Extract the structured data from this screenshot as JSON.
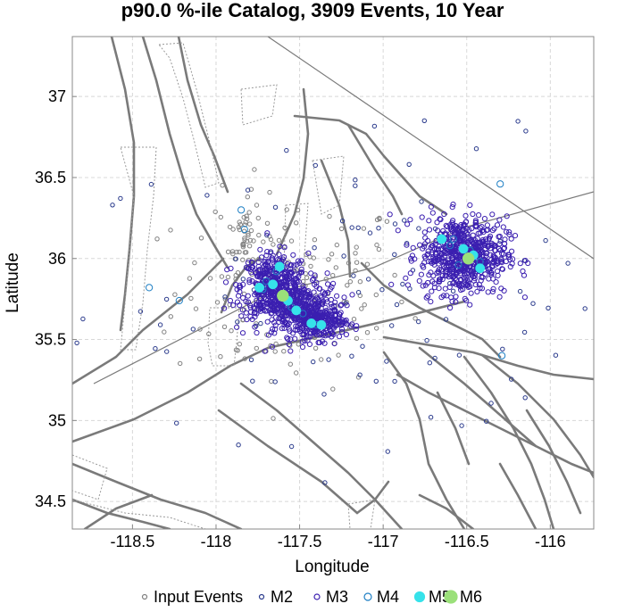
{
  "chart_data": {
    "type": "scatter",
    "title": "p90.0 %-ile Catalog, 3909 Events, 10 Year",
    "xlabel": "Longitude",
    "ylabel": "Latitude",
    "xlim": [
      -118.86,
      -115.74
    ],
    "ylim": [
      34.33,
      37.37
    ],
    "xticks": [
      -118.5,
      -118,
      -117.5,
      -117,
      -116.5,
      -116
    ],
    "yticks": [
      34.5,
      35,
      35.5,
      36,
      36.5,
      37
    ],
    "grid": true,
    "legend_position": "bottom",
    "legend": [
      {
        "label": "Input Events",
        "color": "#808080",
        "symbol": "open-circle"
      },
      {
        "label": "M2",
        "color": "#2a3a8c",
        "symbol": "open-circle"
      },
      {
        "label": "M3",
        "color": "#3b1fb0",
        "symbol": "open-circle"
      },
      {
        "label": "M4",
        "color": "#1e7fc4",
        "symbol": "open-circle"
      },
      {
        "label": "M5",
        "color": "#36e2ea",
        "symbol": "filled-circle"
      },
      {
        "label": "M6",
        "color": "#9be07a",
        "symbol": "filled-circle"
      }
    ],
    "clusters": [
      {
        "series": "M3",
        "center": [
          -117.65,
          35.83
        ],
        "spread": [
          0.1,
          0.1
        ],
        "count": 420
      },
      {
        "series": "M3",
        "center": [
          -117.5,
          35.68
        ],
        "spread": [
          0.12,
          0.08
        ],
        "count": 360
      },
      {
        "series": "M3",
        "center": [
          -117.38,
          35.6
        ],
        "spread": [
          0.08,
          0.05
        ],
        "count": 200
      },
      {
        "series": "M3",
        "center": [
          -116.52,
          36.02
        ],
        "spread": [
          0.13,
          0.12
        ],
        "count": 650
      },
      {
        "series": "Input Events",
        "center": [
          -117.55,
          35.8
        ],
        "spread": [
          0.35,
          0.3
        ],
        "count": 160
      },
      {
        "series": "Input Events",
        "center": [
          -117.83,
          36.15
        ],
        "spread": [
          0.05,
          0.12
        ],
        "count": 40
      },
      {
        "series": "M2",
        "center": [
          -117.0,
          35.8
        ],
        "spread": [
          0.9,
          0.45
        ],
        "count": 120
      }
    ],
    "points": {
      "M4": [
        [
          -117.64,
          35.92
        ],
        [
          -117.7,
          35.86
        ],
        [
          -117.72,
          35.81
        ],
        [
          -117.55,
          35.7
        ],
        [
          -117.48,
          35.66
        ],
        [
          -117.4,
          35.59
        ],
        [
          -116.6,
          36.08
        ],
        [
          -116.48,
          36.05
        ],
        [
          -116.42,
          35.98
        ],
        [
          -116.58,
          36.12
        ],
        [
          -117.85,
          36.3
        ],
        [
          -118.22,
          35.74
        ],
        [
          -118.4,
          35.82
        ],
        [
          -116.3,
          36.46
        ],
        [
          -116.29,
          35.4
        ],
        [
          -116.55,
          35.96
        ],
        [
          -117.83,
          36.18
        ]
      ],
      "M5": [
        [
          -117.62,
          35.95
        ],
        [
          -117.66,
          35.84
        ],
        [
          -117.74,
          35.82
        ],
        [
          -117.57,
          35.74
        ],
        [
          -117.52,
          35.68
        ],
        [
          -117.43,
          35.6
        ],
        [
          -117.37,
          35.59
        ],
        [
          -116.65,
          36.12
        ],
        [
          -116.52,
          36.06
        ],
        [
          -116.42,
          35.94
        ],
        [
          -116.46,
          36.02
        ]
      ],
      "M6": [
        [
          -117.6,
          35.77
        ],
        [
          -116.49,
          36.0
        ]
      ]
    }
  }
}
